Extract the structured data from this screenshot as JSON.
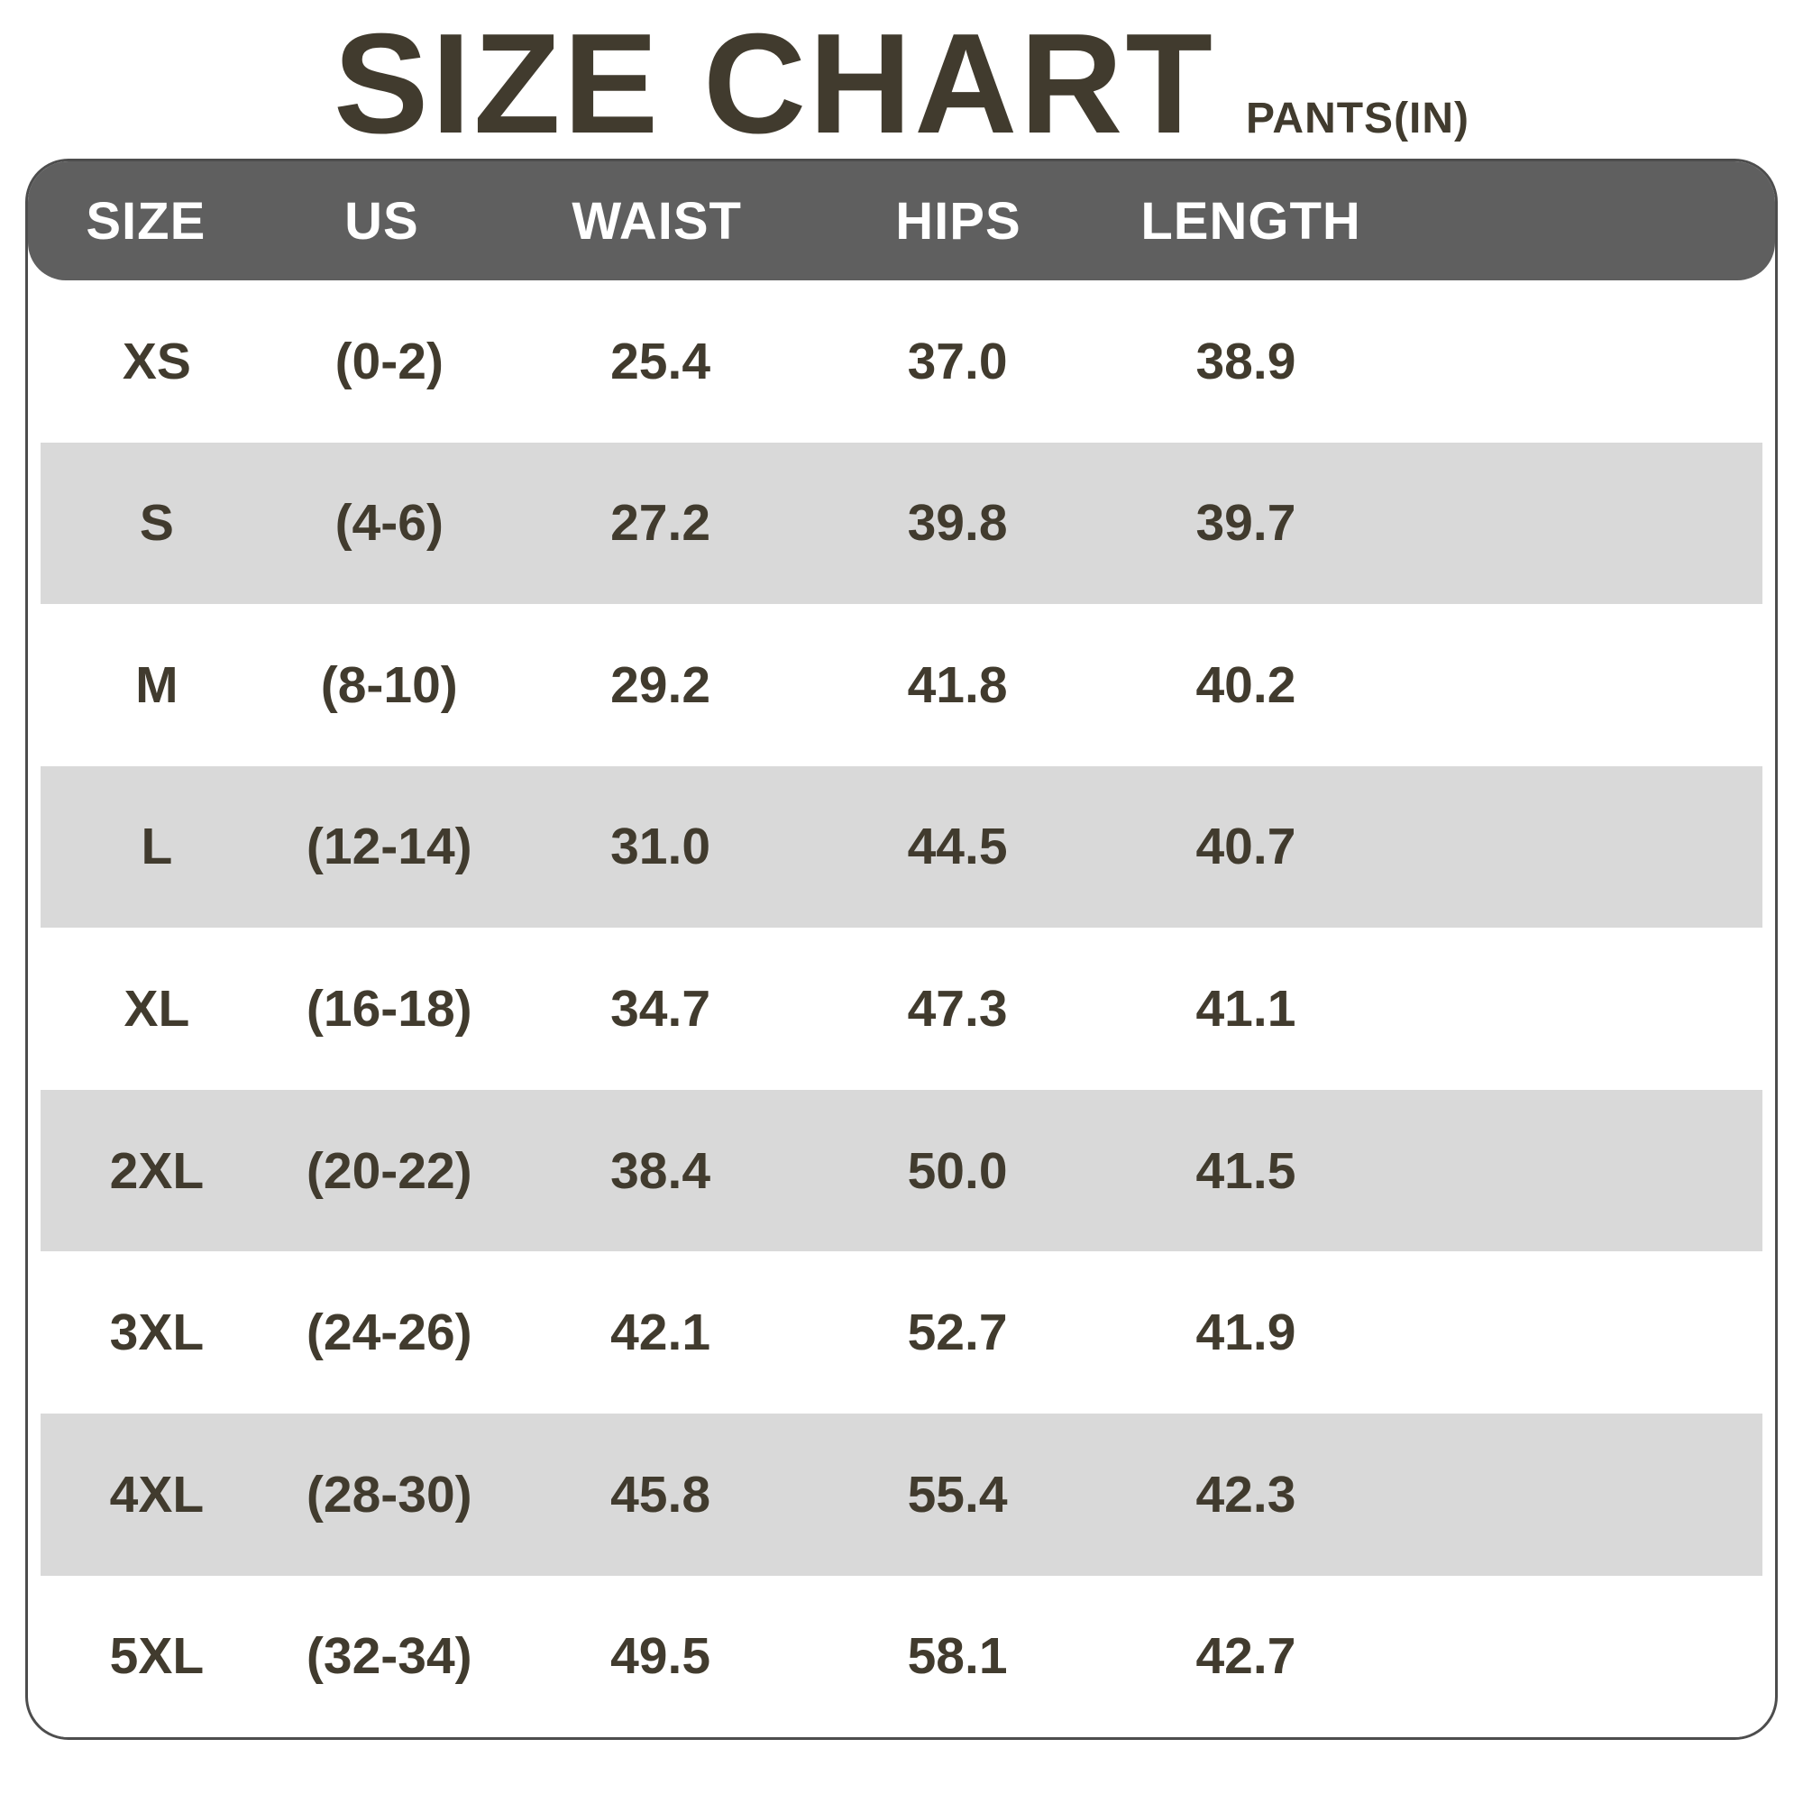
{
  "header": {
    "title": "SIZE CHART",
    "unit_label": "PANTS(IN)"
  },
  "colors": {
    "text": "#413b2e",
    "header_bar_bg": "#5f5f5f",
    "header_bar_text": "#ffffff",
    "row_stripe": "#d9d9d9",
    "card_border": "#4d4d4d",
    "background": "#ffffff"
  },
  "chart_data": {
    "type": "table",
    "title": "SIZE CHART",
    "unit_label": "PANTS(IN)",
    "columns": [
      "SIZE",
      "US",
      "WAIST",
      "HIPS",
      "LENGTH"
    ],
    "rows": [
      {
        "size": "XS",
        "us": "(0-2)",
        "waist": "25.4",
        "hips": "37.0",
        "length": "38.9"
      },
      {
        "size": "S",
        "us": "(4-6)",
        "waist": "27.2",
        "hips": "39.8",
        "length": "39.7"
      },
      {
        "size": "M",
        "us": "(8-10)",
        "waist": "29.2",
        "hips": "41.8",
        "length": "40.2"
      },
      {
        "size": "L",
        "us": "(12-14)",
        "waist": "31.0",
        "hips": "44.5",
        "length": "40.7"
      },
      {
        "size": "XL",
        "us": "(16-18)",
        "waist": "34.7",
        "hips": "47.3",
        "length": "41.1"
      },
      {
        "size": "2XL",
        "us": "(20-22)",
        "waist": "38.4",
        "hips": "50.0",
        "length": "41.5"
      },
      {
        "size": "3XL",
        "us": "(24-26)",
        "waist": "42.1",
        "hips": "52.7",
        "length": "41.9"
      },
      {
        "size": "4XL",
        "us": "(28-30)",
        "waist": "45.8",
        "hips": "55.4",
        "length": "42.3"
      },
      {
        "size": "5XL",
        "us": "(32-34)",
        "waist": "49.5",
        "hips": "58.1",
        "length": "42.7"
      }
    ]
  }
}
